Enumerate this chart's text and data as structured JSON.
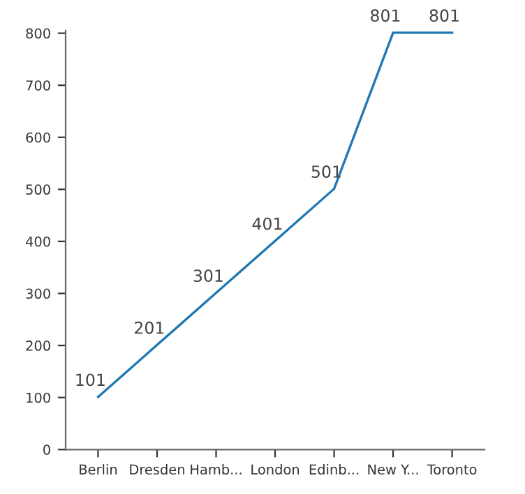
{
  "chart_data": {
    "type": "line",
    "categories": [
      "Berlin",
      "Dresden",
      "Hamb...",
      "London",
      "Edinb...",
      "New Y...",
      "Toronto"
    ],
    "series": [
      {
        "color": "#1f77b4",
        "values": [
          101,
          201,
          301,
          401,
          501,
          801,
          801
        ]
      }
    ],
    "ylim": [
      0,
      805
    ],
    "yticks": [
      0,
      100,
      200,
      300,
      400,
      500,
      600,
      700,
      800
    ],
    "data_labels": true,
    "marker": "none",
    "line_style": "solid"
  }
}
